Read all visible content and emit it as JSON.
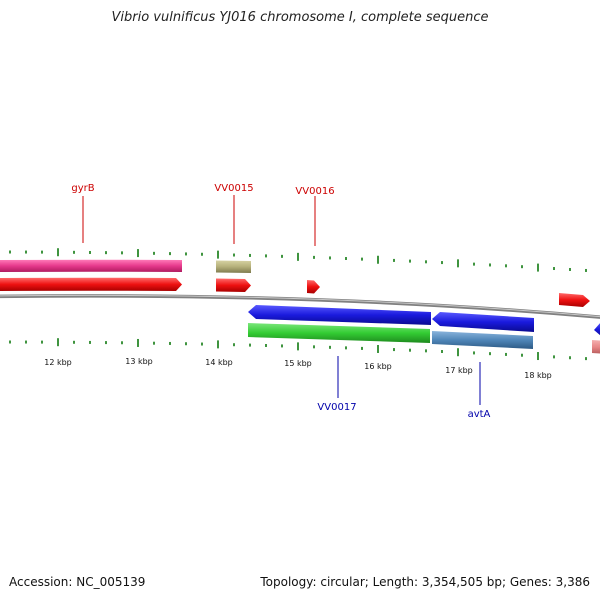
{
  "title": "Vibrio vulnificus YJ016 chromosome I, complete sequence",
  "footer": {
    "accession": "Accession: NC_005139",
    "summary": "Topology: circular; Length: 3,354,505 bp; Genes: 3,386"
  },
  "scale": {
    "unit": "kbp",
    "labels": [
      "12 kbp",
      "13 kbp",
      "14 kbp",
      "15 kbp",
      "16 kbp",
      "17 kbp",
      "18 kbp"
    ]
  },
  "gene_labels": [
    {
      "id": "gyrB",
      "text": "gyrB",
      "strand": "forward"
    },
    {
      "id": "VV0015",
      "text": "VV0015",
      "strand": "forward"
    },
    {
      "id": "VV0016",
      "text": "VV0016",
      "strand": "forward"
    },
    {
      "id": "VV0017",
      "text": "VV0017",
      "strand": "reverse"
    },
    {
      "id": "avtA",
      "text": "avtA",
      "strand": "reverse"
    }
  ],
  "colors": {
    "forward_label": "#cc0000",
    "reverse_label": "#0000aa",
    "backbone": "#808080",
    "ticks": "#0f7a0f",
    "cds_forward": "#ee1111",
    "cds_reverse": "#1a1add",
    "cog_pink": "#e6398c",
    "cog_olive": "#b5b07a",
    "cog_green": "#33cc33",
    "cog_steel": "#4f86b8",
    "cog_salmon": "#e88888"
  }
}
